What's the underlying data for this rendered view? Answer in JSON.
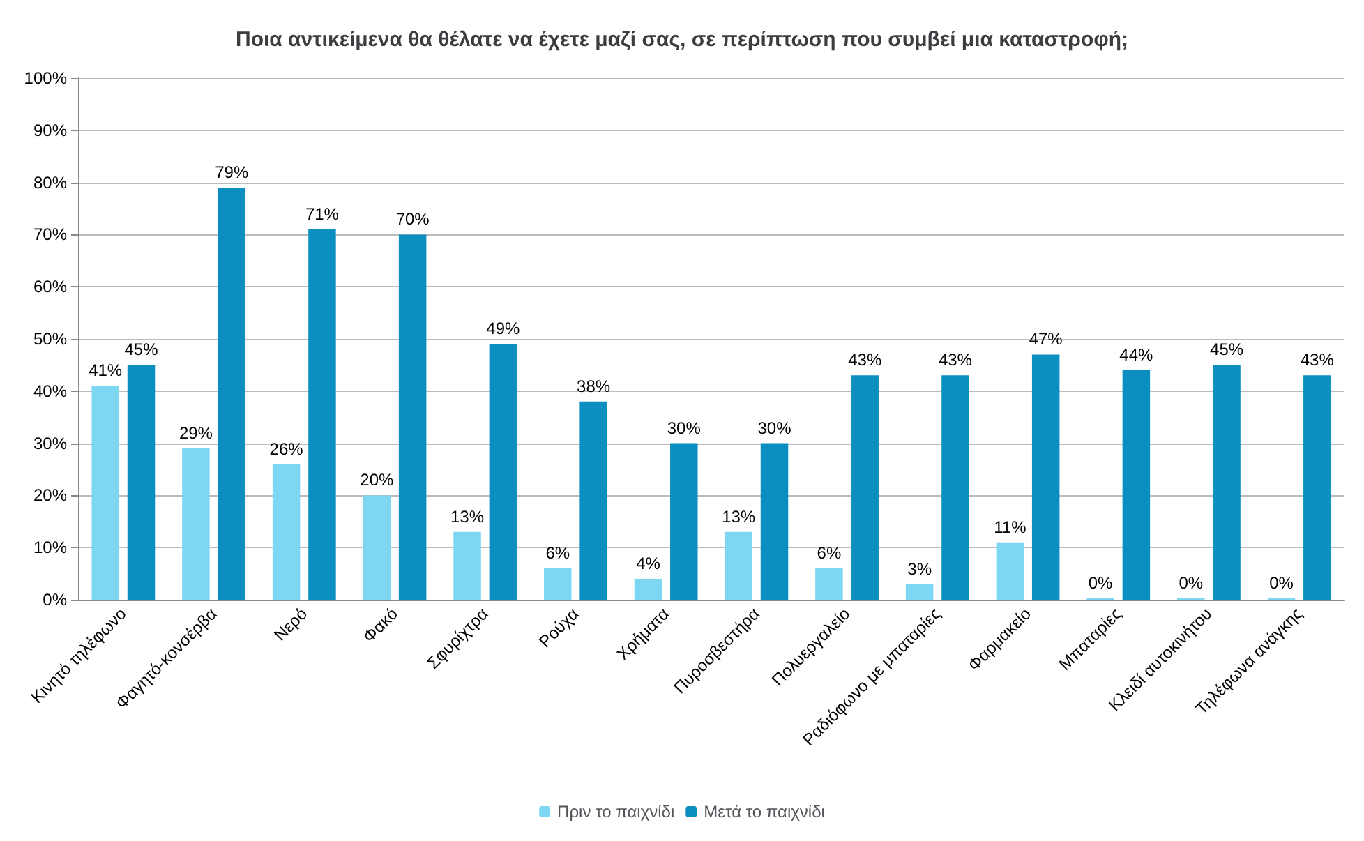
{
  "chart_data": {
    "type": "bar",
    "title": "Ποια αντικείμενα θα θέλατε να έχετε μαζί σας, σε περίπτωση που συμβεί μια καταστροφή;",
    "categories": [
      "Κινητό τηλέφωνο",
      "Φαγητό-κονσέρβα",
      "Νερό",
      "Φακό",
      "Σφυρίχτρα",
      "Ρούχα",
      "Χρήματα",
      "Πυροσβεστήρα",
      "Πολυεργαλείο",
      "Ραδιόφωνο με μπαταρίες",
      "Φαρμακείο",
      "Μπαταρίες",
      "Κλειδί αυτοκινήτου",
      "Τηλέφωνα ανάγκης"
    ],
    "series": [
      {
        "name": "Πριν το παιχνίδι",
        "color": "#7dd6f2",
        "values": [
          41,
          29,
          26,
          20,
          13,
          6,
          4,
          13,
          6,
          3,
          11,
          0,
          0,
          0
        ],
        "value_labels": [
          "41%",
          "29%",
          "26%",
          "20%",
          "13%",
          "6%",
          "4%",
          "13%",
          "6%",
          "3%",
          "11%",
          "0%",
          "0%",
          "0%"
        ]
      },
      {
        "name": "Μετά το παιχνίδι",
        "color": "#0b8fc0",
        "values": [
          45,
          79,
          71,
          70,
          49,
          38,
          30,
          30,
          43,
          43,
          47,
          44,
          45,
          43
        ],
        "value_labels": [
          "45%",
          "79%",
          "71%",
          "70%",
          "49%",
          "38%",
          "30%",
          "30%",
          "43%",
          "43%",
          "47%",
          "44%",
          "45%",
          "43%"
        ]
      }
    ],
    "ylim": [
      0,
      100
    ],
    "yticks": [
      {
        "value": 0,
        "label": "0%"
      },
      {
        "value": 10,
        "label": "10%"
      },
      {
        "value": 20,
        "label": "20%"
      },
      {
        "value": 30,
        "label": "30%"
      },
      {
        "value": 40,
        "label": "40%"
      },
      {
        "value": 50,
        "label": "50%"
      },
      {
        "value": 60,
        "label": "60%"
      },
      {
        "value": 70,
        "label": "70%"
      },
      {
        "value": 80,
        "label": "80%"
      },
      {
        "value": 90,
        "label": "90%"
      },
      {
        "value": 100,
        "label": "100%"
      }
    ],
    "grid": "y",
    "legend": "bottom"
  }
}
